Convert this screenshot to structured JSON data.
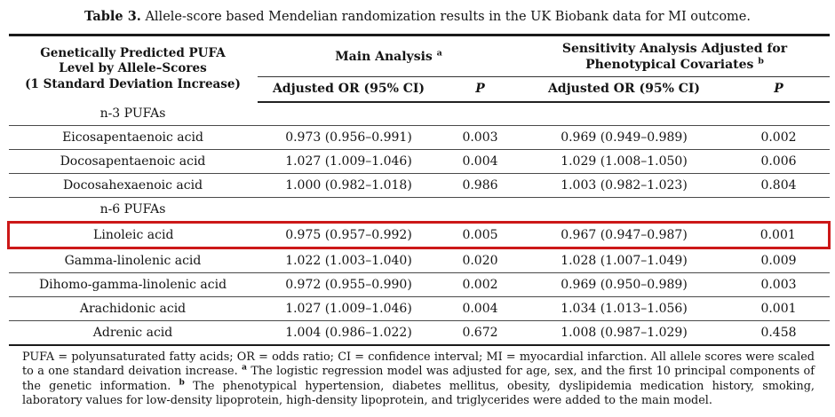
{
  "title": {
    "label": "Table 3.",
    "text": "Allele-score based Mendelian randomization results in the UK Biobank data for MI outcome."
  },
  "header": {
    "col1_lines": [
      "Genetically Predicted PUFA",
      "Level by Allele–Scores",
      "(1 Standard Deviation Increase)"
    ],
    "group_main": "Main Analysis",
    "group_main_sup": "a",
    "group_sens_lines": [
      "Sensitivity Analysis Adjusted for",
      "Phenotypical Covariates"
    ],
    "group_sens_sup": "b",
    "sub_or_main": "Adjusted OR (95% CI)",
    "sub_p_main": "P",
    "sub_or_sens": "Adjusted OR (95% CI)",
    "sub_p_sens": "P"
  },
  "rows": [
    {
      "type": "section",
      "name": "n-3 PUFAs"
    },
    {
      "type": "data",
      "name": "Eicosapentaenoic acid",
      "or_main": "0.973 (0.956–0.991)",
      "p_main": "0.003",
      "or_sens": "0.969 (0.949–0.989)",
      "p_sens": "0.002"
    },
    {
      "type": "data",
      "name": "Docosapentaenoic acid",
      "or_main": "1.027 (1.009–1.046)",
      "p_main": "0.004",
      "or_sens": "1.029 (1.008–1.050)",
      "p_sens": "0.006"
    },
    {
      "type": "data",
      "name": "Docosahexaenoic acid",
      "or_main": "1.000 (0.982–1.018)",
      "p_main": "0.986",
      "or_sens": "1.003 (0.982–1.023)",
      "p_sens": "0.804"
    },
    {
      "type": "section",
      "name": "n-6 PUFAs"
    },
    {
      "type": "data",
      "highlighted": true,
      "name": "Linoleic acid",
      "or_main": "0.975 (0.957–0.992)",
      "p_main": "0.005",
      "or_sens": "0.967 (0.947–0.987)",
      "p_sens": "0.001"
    },
    {
      "type": "data",
      "name": "Gamma-linolenic acid",
      "or_main": "1.022 (1.003–1.040)",
      "p_main": "0.020",
      "or_sens": "1.028 (1.007–1.049)",
      "p_sens": "0.009"
    },
    {
      "type": "data",
      "name": "Dihomo-gamma-linolenic acid",
      "or_main": "0.972 (0.955–0.990)",
      "p_main": "0.002",
      "or_sens": "0.969 (0.950–0.989)",
      "p_sens": "0.003"
    },
    {
      "type": "data",
      "name": "Arachidonic acid",
      "or_main": "1.027 (1.009–1.046)",
      "p_main": "0.004",
      "or_sens": "1.034 (1.013–1.056)",
      "p_sens": "0.001"
    },
    {
      "type": "data",
      "name": "Adrenic acid",
      "or_main": "1.004 (0.986–1.022)",
      "p_main": "0.672",
      "or_sens": "1.008 (0.987–1.029)",
      "p_sens": "0.458"
    }
  ],
  "footnote": {
    "part1": "PUFA = polyunsaturated fatty acids; OR = odds ratio; CI = confidence interval; MI = myocardial infarction. All allele scores were scaled to a one standard deivation increase.",
    "sup_a": "a",
    "part2": "The logistic regression model was adjusted for age, sex, and the first 10 principal components of the genetic information.",
    "sup_b": "b",
    "part3": "The phenotypical hypertension, diabetes mellitus, obesity, dyslipidemia medication history, smoking, laboratory values for low-density lipoprotein, high-density lipoprotein, and triglycerides were added to the main model."
  },
  "colors": {
    "highlight_border": "#cc1818",
    "rule_dark": "#1a1a1a",
    "text": "#141414",
    "background": "#ffffff"
  }
}
